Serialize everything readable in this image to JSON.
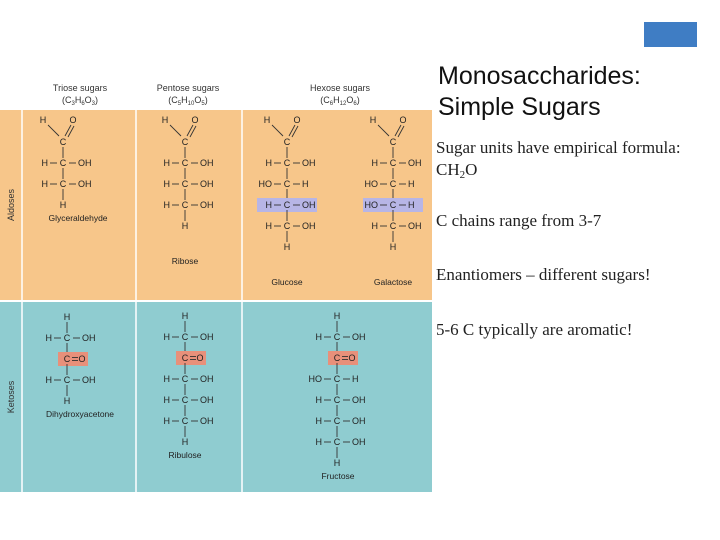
{
  "slide": {
    "title_line1": "Monosaccharides:",
    "title_line2": "Simple Sugars",
    "bullets": {
      "b1_part1": "Sugar units have empirical formula:",
      "b1_formula_main": "CH",
      "b1_formula_sub": "2",
      "b1_formula_end": "O",
      "b2": "C chains range from 3-7",
      "b3": "Enantiomers – different sugars!",
      "b4": "5-6 C typically are aromatic!"
    }
  },
  "figure": {
    "columns": [
      {
        "title": "Triose sugars",
        "formula": "(C3H6O3)"
      },
      {
        "title": "Pentose sugars",
        "formula": "(C5H10O5)"
      },
      {
        "title": "Hexose sugars",
        "formula": "(C6H12O6)"
      }
    ],
    "rows": [
      {
        "label": "Aldoses",
        "color": "#f7c68a"
      },
      {
        "label": "Ketoses",
        "color": "#8fccd0"
      }
    ],
    "names": {
      "glyceraldehyde": "Glyceraldehyde",
      "ribose": "Ribose",
      "glucose": "Glucose",
      "galactose": "Galactose",
      "dihydroxyacetone": "Dihydroxyacetone",
      "ribulose": "Ribulose",
      "fructose": "Fructose"
    }
  }
}
